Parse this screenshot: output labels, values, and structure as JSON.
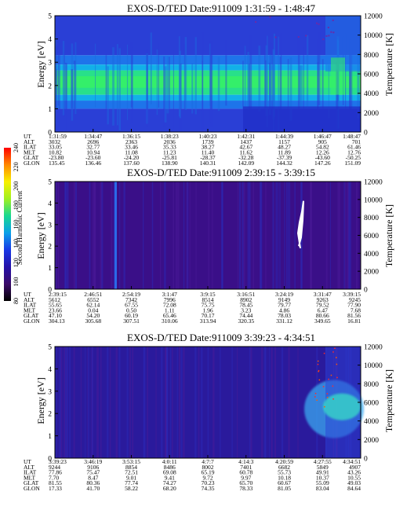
{
  "colorbar": {
    "label": "Second Harmonic Current",
    "ticks": [
      "80",
      "100",
      "120",
      "140",
      "160",
      "180",
      "200",
      "220",
      "240"
    ],
    "range": [
      80,
      240
    ],
    "stops": [
      "#000000",
      "#3a0a6a",
      "#2410a8",
      "#1838e6",
      "#0aa0e8",
      "#18d890",
      "#a0f020",
      "#f8f000",
      "#ff8800",
      "#ff0000"
    ]
  },
  "chart_data": [
    {
      "type": "heatmap",
      "title": "EXOS-D/TED   Date:911009   1:31:59 - 1:48:47",
      "ylabel": "Energy [eV]",
      "y2label": "Temperature [K]",
      "ylim": [
        0,
        5
      ],
      "y2lim": [
        0,
        12000
      ],
      "yticks": [
        "0",
        "1",
        "2",
        "3",
        "4",
        "5"
      ],
      "y2ticks": [
        "0",
        "2000",
        "4000",
        "6000",
        "8000",
        "10000",
        "12000"
      ],
      "ephemeris": {
        "labels": [
          "UT",
          "ALT",
          "ILAT",
          "MLT",
          "GLAT",
          "GLON"
        ],
        "columns": [
          [
            "1:31:59",
            "3032",
            "33.05",
            "10.82",
            "-23.80",
            "135.45"
          ],
          [
            "1:34:47",
            "2696",
            "32.77",
            "10.94",
            "-23.60",
            "136.46"
          ],
          [
            "1:36:15",
            "2363",
            "33.46",
            "11.08",
            "-24.20",
            "137.60"
          ],
          [
            "1:38:23",
            "2036",
            "35.33",
            "11.23",
            "-25.81",
            "138.90"
          ],
          [
            "1:40:23",
            "1739",
            "38.27",
            "11.40",
            "-28.37",
            "140.31"
          ],
          [
            "1:42:31",
            "1437",
            "42.67",
            "11.62",
            "-32.28",
            "142.09"
          ],
          [
            "1:44:39",
            "1157",
            "48.27",
            "11.89",
            "-37.39",
            "144.32"
          ],
          [
            "1:46:47",
            "905",
            "54.82",
            "12.26",
            "-43.60",
            "147.26"
          ],
          [
            "1:48:47",
            "701",
            "61.46",
            "12.76",
            "-50.25",
            "151.09"
          ]
        ]
      }
    },
    {
      "type": "heatmap",
      "title": "EXOS-D/TED   Date:911009   2:39:15 - 3:39:15",
      "ylabel": "Energy [eV]",
      "y2label": "Temperature [K]",
      "ylim": [
        0,
        5
      ],
      "y2lim": [
        0,
        12000
      ],
      "yticks": [
        "0",
        "1",
        "2",
        "3",
        "4",
        "5"
      ],
      "y2ticks": [
        "0",
        "2000",
        "4000",
        "6000",
        "8000",
        "10000",
        "12000"
      ],
      "ephemeris": {
        "labels": [
          "UT",
          "ALT",
          "ILAT",
          "MLT",
          "GLAT",
          "GLON"
        ],
        "columns": [
          [
            "2:39:15",
            "5612",
            "55.65",
            "23.66",
            "47.10",
            "304.13"
          ],
          [
            "2:46:51",
            "6552",
            "62.14",
            "0.04",
            "54.20",
            "305.68"
          ],
          [
            "2:54:19",
            "7342",
            "67.55",
            "0.50",
            "60.19",
            "307.51"
          ],
          [
            "3:1:47",
            "7996",
            "72.08",
            "1.11",
            "65.46",
            "310.06"
          ],
          [
            "3:9:15",
            "8514",
            "75.75",
            "1.96",
            "70.17",
            "313.94"
          ],
          [
            "3:16:51",
            "8902",
            "78.45",
            "3.23",
            "74.44",
            "320.35"
          ],
          [
            "3:24:19",
            "9149",
            "79.77",
            "4.86",
            "78.03",
            "331.12"
          ],
          [
            "3:31:47",
            "9263",
            "79.52",
            "6.47",
            "80.66",
            "349.65"
          ],
          [
            "3:39:15",
            "9245",
            "77.90",
            "7.68",
            "81.56",
            "16.81"
          ]
        ]
      }
    },
    {
      "type": "heatmap",
      "title": "EXOS-D/TED   Date:911009   3:39:23 - 4:34:51",
      "ylabel": "Energy [eV]",
      "y2label": "Temperature [K]",
      "ylim": [
        0,
        5
      ],
      "y2lim": [
        0,
        12000
      ],
      "yticks": [
        "0",
        "1",
        "2",
        "3",
        "4",
        "5"
      ],
      "y2ticks": [
        "0",
        "2000",
        "4000",
        "6000",
        "8000",
        "10000",
        "12000"
      ],
      "ephemeris": {
        "labels": [
          "UT",
          "ALT",
          "ILAT",
          "MLT",
          "GLAT",
          "GLON"
        ],
        "columns": [
          [
            "3:39:23",
            "9244",
            "77.86",
            "7.70",
            "81.55",
            "17.33"
          ],
          [
            "3:46:19",
            "9106",
            "75.47",
            "8.47",
            "80.36",
            "41.70"
          ],
          [
            "3:53:15",
            "8854",
            "72.51",
            "9.01",
            "77.74",
            "58.22"
          ],
          [
            "4:0:11",
            "8486",
            "69.08",
            "9.41",
            "74.27",
            "68.20"
          ],
          [
            "4:7:7",
            "8002",
            "65.19",
            "9.72",
            "70.23",
            "74.35"
          ],
          [
            "4:14:3",
            "7401",
            "60.78",
            "9.97",
            "65.70",
            "78.33"
          ],
          [
            "4:20:59",
            "6682",
            "55.73",
            "10.18",
            "60.67",
            "81.05"
          ],
          [
            "4:27:55",
            "5849",
            "49.91",
            "10.37",
            "55.09",
            "83.04"
          ],
          [
            "4:34:51",
            "4907",
            "43.26",
            "10.55",
            "49.03",
            "84.64"
          ]
        ]
      }
    }
  ]
}
